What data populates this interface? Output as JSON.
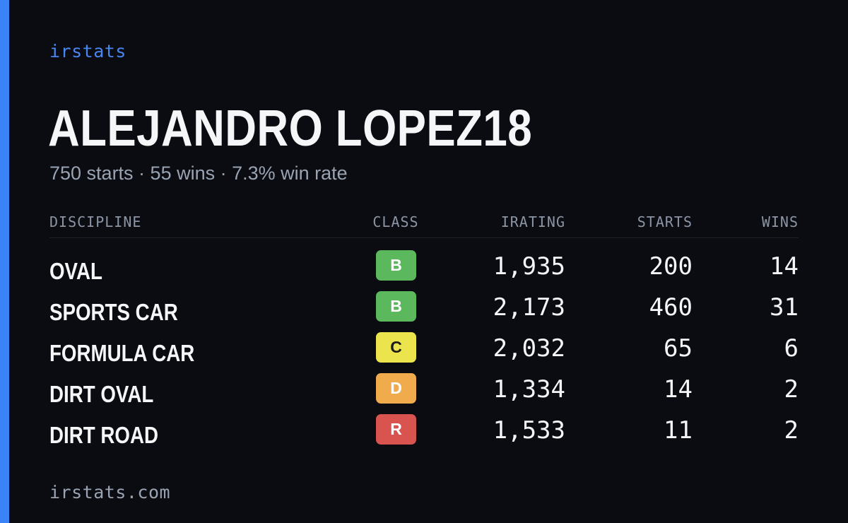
{
  "brand": "irstats",
  "driver": {
    "name": "ALEJANDRO LOPEZ18",
    "summary": "750 starts · 55 wins · 7.3% win rate"
  },
  "table": {
    "headers": {
      "discipline": "DISCIPLINE",
      "class": "CLASS",
      "irating": "IRATING",
      "starts": "STARTS",
      "wins": "WINS"
    },
    "rows": [
      {
        "discipline": "OVAL",
        "class": "B",
        "class_color": "#5cb85c",
        "class_text_color": "#ffffff",
        "irating": "1,935",
        "starts": "200",
        "wins": "14"
      },
      {
        "discipline": "SPORTS CAR",
        "class": "B",
        "class_color": "#5cb85c",
        "class_text_color": "#ffffff",
        "irating": "2,173",
        "starts": "460",
        "wins": "31"
      },
      {
        "discipline": "FORMULA CAR",
        "class": "C",
        "class_color": "#ece44c",
        "class_text_color": "#1a1a1a",
        "irating": "2,032",
        "starts": "65",
        "wins": "6"
      },
      {
        "discipline": "DIRT OVAL",
        "class": "D",
        "class_color": "#f0ab4c",
        "class_text_color": "#ffffff",
        "irating": "1,334",
        "starts": "14",
        "wins": "2"
      },
      {
        "discipline": "DIRT ROAD",
        "class": "R",
        "class_color": "#d9534f",
        "class_text_color": "#ffffff",
        "irating": "1,533",
        "starts": "11",
        "wins": "2"
      }
    ]
  },
  "footer": "irstats.com",
  "colors": {
    "background": "#0a0c12",
    "accent": "#3b82f6",
    "brand_text": "#4a86f0",
    "muted_text": "#9aa3b2"
  }
}
